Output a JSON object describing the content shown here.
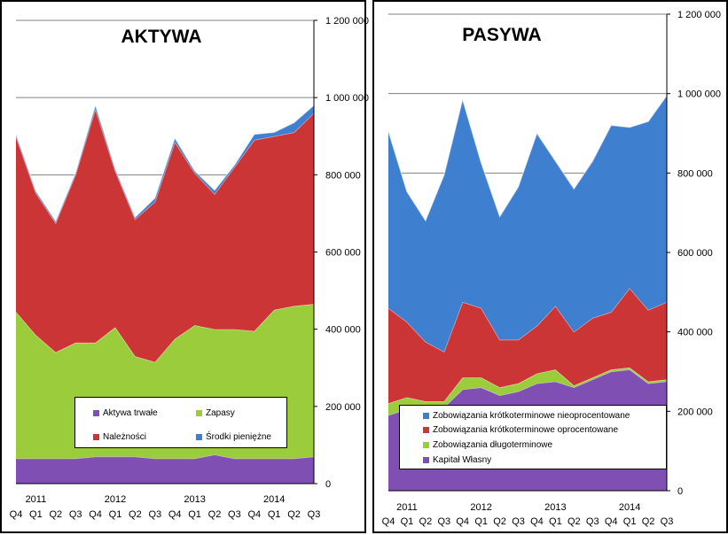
{
  "chart_data": [
    {
      "type": "area",
      "stacked": true,
      "title": "AKTYWA",
      "quarters": [
        "Q4",
        "Q1",
        "Q2",
        "Q3",
        "Q4",
        "Q1",
        "Q2",
        "Q3",
        "Q4",
        "Q1",
        "Q2",
        "Q3",
        "Q4",
        "Q1",
        "Q2",
        "Q3"
      ],
      "years": [
        "2011",
        "2012",
        "2013",
        "2014"
      ],
      "ylim": [
        0,
        1200000
      ],
      "ytick_labels": [
        "0",
        "200 000",
        "400 000",
        "600 000",
        "800 000",
        "1 000 000",
        "1 200 000"
      ],
      "grid": true,
      "legend_position": "bottom-center",
      "series": [
        {
          "name": "Aktywa trwałe",
          "color": "#7f4fb3",
          "values": [
            65000,
            65000,
            65000,
            65000,
            70000,
            70000,
            70000,
            65000,
            65000,
            65000,
            75000,
            65000,
            65000,
            65000,
            65000,
            70000
          ]
        },
        {
          "name": "Zapasy",
          "color": "#9bcc3c",
          "values": [
            380000,
            320000,
            275000,
            300000,
            295000,
            335000,
            260000,
            250000,
            310000,
            345000,
            325000,
            335000,
            330000,
            385000,
            395000,
            395000
          ]
        },
        {
          "name": "Należności",
          "color": "#cc3535",
          "values": [
            455000,
            368000,
            335000,
            435000,
            605000,
            405000,
            355000,
            415000,
            510000,
            395000,
            350000,
            420000,
            495000,
            450000,
            450000,
            495000
          ]
        },
        {
          "name": "Środki pieniężne",
          "color": "#3f7fd0",
          "values": [
            5000,
            5000,
            5000,
            5000,
            10000,
            5000,
            5000,
            10000,
            10000,
            5000,
            10000,
            5000,
            15000,
            10000,
            25000,
            20000
          ]
        }
      ]
    },
    {
      "type": "area",
      "stacked": true,
      "title": "PASYWA",
      "quarters": [
        "Q4",
        "Q1",
        "Q2",
        "Q3",
        "Q4",
        "Q1",
        "Q2",
        "Q3",
        "Q4",
        "Q1",
        "Q2",
        "Q3",
        "Q4",
        "Q1",
        "Q2",
        "Q3"
      ],
      "years": [
        "2011",
        "2012",
        "2013",
        "2014"
      ],
      "ylim": [
        0,
        1200000
      ],
      "ytick_labels": [
        "0",
        "200 000",
        "400 000",
        "600 000",
        "800 000",
        "1 000 000",
        "1 200 000"
      ],
      "grid": true,
      "legend_position": "bottom-center",
      "series": [
        {
          "name": "Kapitał Własny",
          "color": "#7f4fb3",
          "values": [
            190000,
            205000,
            210000,
            210000,
            255000,
            260000,
            240000,
            250000,
            270000,
            275000,
            260000,
            280000,
            300000,
            305000,
            270000,
            275000
          ]
        },
        {
          "name": "Zobowiązania długoterminowe",
          "color": "#9bcc3c",
          "values": [
            30000,
            30000,
            15000,
            15000,
            30000,
            25000,
            20000,
            20000,
            25000,
            30000,
            5000,
            5000,
            5000,
            5000,
            5000,
            5000
          ]
        },
        {
          "name": "Zobowiązania krótkoterminowe oprocentowane",
          "color": "#cc3535",
          "values": [
            240000,
            190000,
            150000,
            125000,
            190000,
            175000,
            120000,
            110000,
            120000,
            160000,
            135000,
            150000,
            145000,
            200000,
            180000,
            195000
          ]
        },
        {
          "name": "Zobowiązania krótkoterminowe nieoprocentowane",
          "color": "#3f7fd0",
          "values": [
            445000,
            328000,
            305000,
            445000,
            510000,
            365000,
            310000,
            385000,
            485000,
            365000,
            360000,
            395000,
            470000,
            405000,
            475000,
            520000
          ]
        }
      ]
    }
  ]
}
